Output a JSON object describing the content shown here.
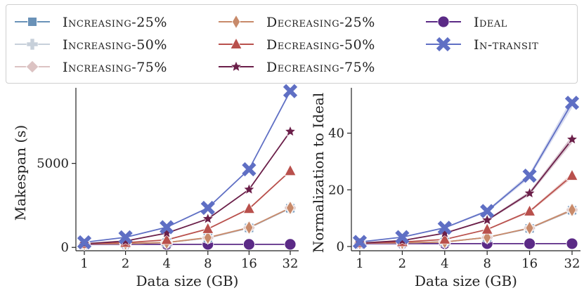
{
  "legend": {
    "entries": [
      {
        "key": "inc25",
        "label": "Increasing-25%",
        "color": "#6a92b8",
        "marker": "square"
      },
      {
        "key": "inc50",
        "label": "Increasing-50%",
        "color": "#c7d0da",
        "marker": "plus"
      },
      {
        "key": "inc75",
        "label": "Increasing-75%",
        "color": "#dcc3c3",
        "marker": "diamond"
      },
      {
        "key": "dec25",
        "label": "Decreasing-25%",
        "color": "#c88a6a",
        "marker": "thin-diamond"
      },
      {
        "key": "dec50",
        "label": "Decreasing-50%",
        "color": "#b9504c",
        "marker": "triangle"
      },
      {
        "key": "dec75",
        "label": "Decreasing-75%",
        "color": "#6b1f49",
        "marker": "star"
      },
      {
        "key": "ideal",
        "label": "Ideal",
        "color": "#5b2a86",
        "marker": "circle"
      },
      {
        "key": "intransit",
        "label": "In-transit",
        "color": "#5f6fc4",
        "marker": "x"
      }
    ]
  },
  "chart_data": [
    {
      "type": "line",
      "title": "",
      "xlabel": "Data size (GB)",
      "ylabel": "Makespan (s)",
      "categories": [
        "1",
        "2",
        "4",
        "8",
        "16",
        "32"
      ],
      "ylim": [
        -200,
        9500
      ],
      "yticks": [
        0,
        5000
      ],
      "series": [
        {
          "key": "inc25",
          "name": "Increasing-25%",
          "values": [
            215,
            225,
            285,
            560,
            1160,
            2330
          ]
        },
        {
          "key": "inc50",
          "name": "Increasing-50%",
          "values": [
            215,
            225,
            290,
            570,
            1170,
            2350
          ]
        },
        {
          "key": "inc75",
          "name": "Increasing-75%",
          "values": [
            215,
            225,
            290,
            570,
            1170,
            2350
          ]
        },
        {
          "key": "dec25",
          "name": "Decreasing-25%",
          "values": [
            215,
            230,
            290,
            580,
            1180,
            2350
          ]
        },
        {
          "key": "dec50",
          "name": "Decreasing-50%",
          "values": [
            215,
            280,
            450,
            1100,
            2300,
            4550
          ]
        },
        {
          "key": "dec75",
          "name": "Decreasing-75%",
          "values": [
            215,
            380,
            850,
            1700,
            3450,
            6900
          ]
        },
        {
          "key": "ideal",
          "name": "Ideal",
          "values": [
            180,
            180,
            180,
            180,
            180,
            180
          ]
        },
        {
          "key": "intransit",
          "name": "In-transit",
          "values": [
            300,
            600,
            1200,
            2350,
            4650,
            9300
          ]
        }
      ]
    },
    {
      "type": "line",
      "title": "",
      "xlabel": "Data size (GB)",
      "ylabel": "Normalization to Ideal",
      "categories": [
        "1",
        "2",
        "4",
        "8",
        "16",
        "32"
      ],
      "ylim": [
        -1.5,
        56
      ],
      "yticks": [
        0,
        20,
        40
      ],
      "series": [
        {
          "key": "inc25",
          "name": "Increasing-25%",
          "values": [
            1.2,
            1.3,
            1.6,
            3.2,
            6.4,
            12.8
          ]
        },
        {
          "key": "inc50",
          "name": "Increasing-50%",
          "values": [
            1.2,
            1.3,
            1.6,
            3.2,
            6.5,
            12.9
          ]
        },
        {
          "key": "inc75",
          "name": "Increasing-75%",
          "values": [
            1.2,
            1.3,
            1.6,
            3.2,
            6.5,
            12.9
          ]
        },
        {
          "key": "dec25",
          "name": "Decreasing-25%",
          "values": [
            1.2,
            1.3,
            1.6,
            3.2,
            6.5,
            12.9
          ]
        },
        {
          "key": "dec50",
          "name": "Decreasing-50%",
          "values": [
            1.2,
            1.6,
            2.5,
            6.0,
            12.4,
            25.0
          ]
        },
        {
          "key": "dec75",
          "name": "Decreasing-75%",
          "values": [
            1.2,
            2.1,
            4.7,
            9.3,
            18.8,
            37.8
          ]
        },
        {
          "key": "ideal",
          "name": "Ideal",
          "values": [
            1,
            1,
            1,
            1,
            1,
            1
          ]
        },
        {
          "key": "intransit",
          "name": "In-transit",
          "values": [
            1.6,
            3.3,
            6.6,
            12.5,
            25.0,
            50.7
          ]
        }
      ]
    }
  ]
}
